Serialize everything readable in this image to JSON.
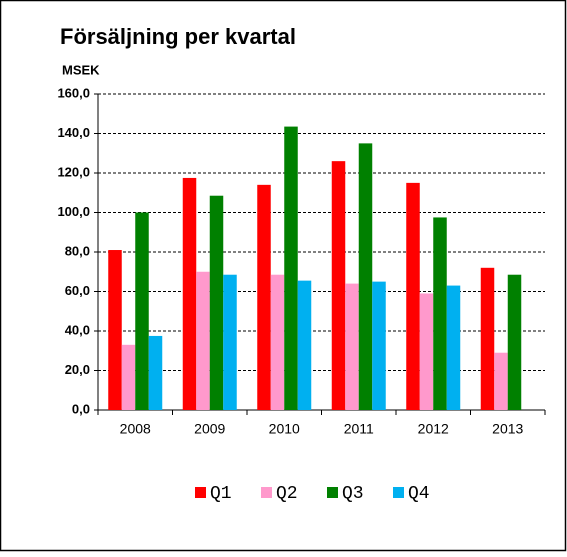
{
  "chart_data": {
    "type": "bar",
    "title": "Försäljning per kvartal",
    "y_label": "MSEK",
    "categories": [
      "2008",
      "2009",
      "2010",
      "2011",
      "2012",
      "2013"
    ],
    "series": [
      {
        "name": "Q1",
        "color": "#ff0000",
        "values": [
          81,
          117.5,
          114,
          126,
          115,
          72
        ]
      },
      {
        "name": "Q2",
        "color": "#ff99cc",
        "values": [
          33,
          70,
          68.5,
          64,
          59,
          29
        ]
      },
      {
        "name": "Q3",
        "color": "#008000",
        "values": [
          100,
          108.5,
          143.5,
          135,
          97.5,
          68.5
        ]
      },
      {
        "name": "Q4",
        "color": "#00b0f0",
        "values": [
          37.5,
          68.5,
          65.5,
          65,
          63,
          null
        ]
      }
    ],
    "ylim": [
      0,
      160
    ],
    "yticks": [
      {
        "value": 0,
        "label": "0,0"
      },
      {
        "value": 20,
        "label": "20,0"
      },
      {
        "value": 40,
        "label": "40,0"
      },
      {
        "value": 60,
        "label": "60,0"
      },
      {
        "value": 80,
        "label": "80,0"
      },
      {
        "value": 100,
        "label": "100,0"
      },
      {
        "value": 120,
        "label": "120,0"
      },
      {
        "value": 140,
        "label": "140,0"
      },
      {
        "value": 160,
        "label": "160,0"
      }
    ],
    "grid": true,
    "legend": "bottom"
  }
}
